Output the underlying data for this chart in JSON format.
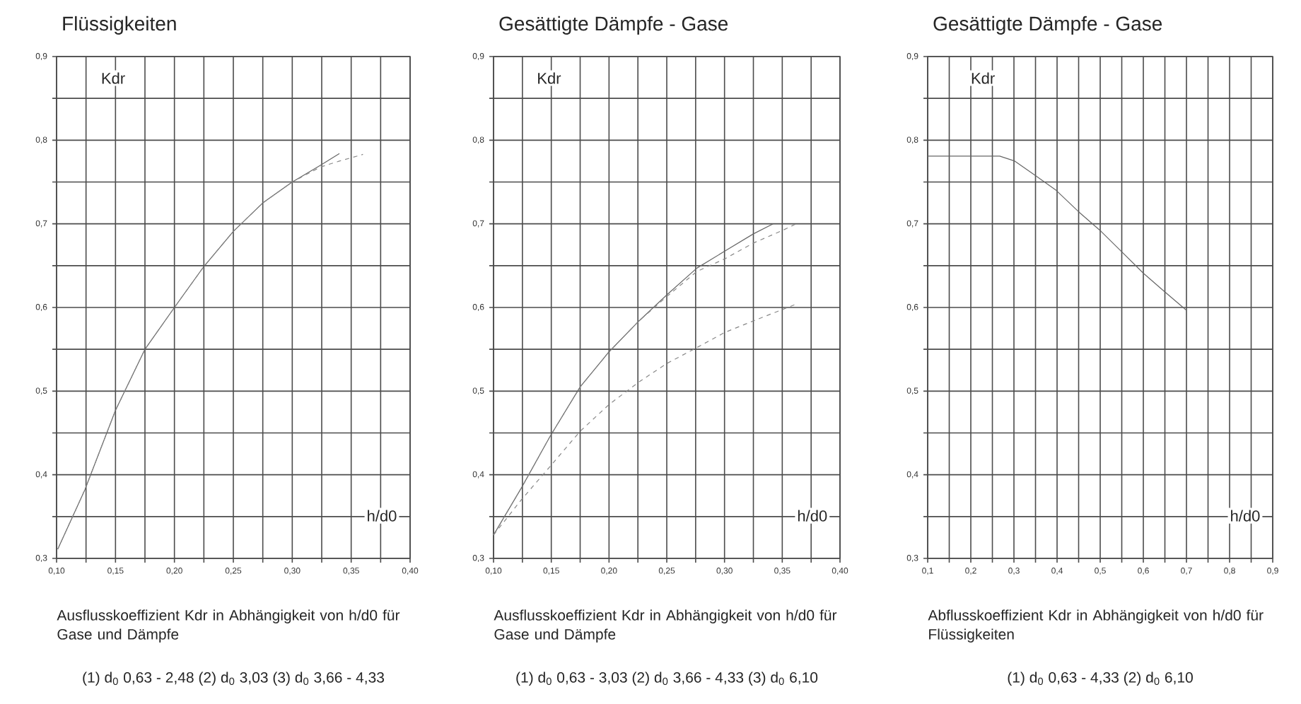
{
  "chart_data": [
    {
      "type": "line",
      "title": "Flüssigkeiten",
      "xlabel": "h/d0",
      "ylabel": "Kdr",
      "grid": true,
      "xlim": [
        0.1,
        0.4
      ],
      "ylim": [
        0.3,
        0.9
      ],
      "xticks": [
        {
          "value": 0.1,
          "label": "0,10"
        },
        {
          "value": 0.125,
          "label": null
        },
        {
          "value": 0.15,
          "label": "0,15"
        },
        {
          "value": 0.175,
          "label": null
        },
        {
          "value": 0.2,
          "label": "0,20"
        },
        {
          "value": 0.225,
          "label": null
        },
        {
          "value": 0.25,
          "label": "0,25"
        },
        {
          "value": 0.275,
          "label": null
        },
        {
          "value": 0.3,
          "label": "0,30"
        },
        {
          "value": 0.325,
          "label": null
        },
        {
          "value": 0.35,
          "label": "0,35"
        },
        {
          "value": 0.375,
          "label": null
        },
        {
          "value": 0.4,
          "label": "0,40"
        }
      ],
      "yticks": [
        {
          "value": 0.3,
          "label": "0,3"
        },
        {
          "value": 0.35,
          "label": null
        },
        {
          "value": 0.4,
          "label": "0,4"
        },
        {
          "value": 0.45,
          "label": null
        },
        {
          "value": 0.5,
          "label": "0,5"
        },
        {
          "value": 0.55,
          "label": null
        },
        {
          "value": 0.6,
          "label": "0,6"
        },
        {
          "value": 0.65,
          "label": null
        },
        {
          "value": 0.7,
          "label": "0,7"
        },
        {
          "value": 0.75,
          "label": null
        },
        {
          "value": 0.8,
          "label": "0,8"
        },
        {
          "value": 0.85,
          "label": null
        },
        {
          "value": 0.9,
          "label": "0,9"
        }
      ],
      "series": [
        {
          "color": "#666666",
          "line_style": "solid",
          "x": [
            0.101,
            0.124,
            0.15,
            0.175,
            0.2,
            0.225,
            0.25,
            0.275,
            0.3,
            0.324,
            0.34
          ],
          "values": [
            0.311,
            0.382,
            0.477,
            0.55,
            0.6,
            0.649,
            0.691,
            0.725,
            0.75,
            0.77,
            0.784
          ]
        },
        {
          "color": "#888888",
          "line_style": "dashed",
          "x": [
            0.101,
            0.124,
            0.15,
            0.175,
            0.2,
            0.225,
            0.25,
            0.275,
            0.3,
            0.324,
            0.34,
            0.36
          ],
          "values": [
            0.311,
            0.382,
            0.477,
            0.55,
            0.6,
            0.649,
            0.691,
            0.725,
            0.75,
            0.768,
            0.775,
            0.783
          ]
        }
      ],
      "annotations": [
        "Ausflusskoeffizient Kdr in Abhängigkeit von h/d0 für Gase und Dämpfe",
        "(1) d$_{0}$ 0,63 - 2,48  (2) d$_{0}$ 3,03  (3) d$_{0}$ 3,66 - 4,33"
      ]
    },
    {
      "type": "line",
      "title": "Gesättigte Dämpfe - Gase",
      "xlabel": "h/d0",
      "ylabel": "Kdr",
      "grid": true,
      "xlim": [
        0.1,
        0.4
      ],
      "ylim": [
        0.3,
        0.9
      ],
      "xticks": [
        {
          "value": 0.1,
          "label": "0,10"
        },
        {
          "value": 0.125,
          "label": null
        },
        {
          "value": 0.15,
          "label": "0,15"
        },
        {
          "value": 0.175,
          "label": null
        },
        {
          "value": 0.2,
          "label": "0,20"
        },
        {
          "value": 0.225,
          "label": null
        },
        {
          "value": 0.25,
          "label": "0,25"
        },
        {
          "value": 0.275,
          "label": null
        },
        {
          "value": 0.3,
          "label": "0,30"
        },
        {
          "value": 0.325,
          "label": null
        },
        {
          "value": 0.35,
          "label": "0,35"
        },
        {
          "value": 0.375,
          "label": null
        },
        {
          "value": 0.4,
          "label": "0,40"
        }
      ],
      "yticks": [
        {
          "value": 0.3,
          "label": "0,3"
        },
        {
          "value": 0.35,
          "label": null
        },
        {
          "value": 0.4,
          "label": "0,4"
        },
        {
          "value": 0.45,
          "label": null
        },
        {
          "value": 0.5,
          "label": "0,5"
        },
        {
          "value": 0.55,
          "label": null
        },
        {
          "value": 0.6,
          "label": "0,6"
        },
        {
          "value": 0.65,
          "label": null
        },
        {
          "value": 0.7,
          "label": "0,7"
        },
        {
          "value": 0.75,
          "label": null
        },
        {
          "value": 0.8,
          "label": "0,8"
        },
        {
          "value": 0.85,
          "label": null
        },
        {
          "value": 0.9,
          "label": "0,9"
        }
      ],
      "series": [
        {
          "color": "#666666",
          "line_style": "solid",
          "x": [
            0.1,
            0.124,
            0.149,
            0.175,
            0.2,
            0.226,
            0.25,
            0.276,
            0.301,
            0.325,
            0.342
          ],
          "values": [
            0.328,
            0.384,
            0.446,
            0.505,
            0.547,
            0.584,
            0.615,
            0.647,
            0.668,
            0.688,
            0.7
          ]
        },
        {
          "color": "#888888",
          "line_style": "dashed",
          "x": [
            0.1,
            0.124,
            0.149,
            0.175,
            0.2,
            0.226,
            0.25,
            0.276,
            0.3,
            0.325,
            0.35,
            0.362
          ],
          "values": [
            0.328,
            0.384,
            0.446,
            0.505,
            0.547,
            0.584,
            0.613,
            0.643,
            0.658,
            0.677,
            0.692,
            0.7
          ]
        },
        {
          "color": "#888888",
          "line_style": "dashed",
          "x": [
            0.1,
            0.124,
            0.149,
            0.175,
            0.2,
            0.226,
            0.25,
            0.276,
            0.3,
            0.325,
            0.362
          ],
          "values": [
            0.328,
            0.37,
            0.41,
            0.452,
            0.484,
            0.511,
            0.533,
            0.552,
            0.57,
            0.584,
            0.604
          ]
        }
      ],
      "annotations": [
        "Ausflusskoeffizient Kdr in Abhängigkeit von h/d0 für Gase und Dämpfe",
        "(1) d$_{0}$ 0,63 - 3,03 (2) d$_{0}$ 3,66 - 4,33  (3) d$_{0}$ 6,10"
      ]
    },
    {
      "type": "line",
      "title": "Gesättigte Dämpfe - Gase",
      "xlabel": "h/d0",
      "ylabel": "Kdr",
      "grid": true,
      "xlim": [
        0.1,
        0.9
      ],
      "ylim": [
        0.3,
        0.9
      ],
      "xticks": [
        {
          "value": 0.1,
          "label": "0,1"
        },
        {
          "value": 0.15,
          "label": null
        },
        {
          "value": 0.2,
          "label": "0,2"
        },
        {
          "value": 0.25,
          "label": null
        },
        {
          "value": 0.3,
          "label": "0,3"
        },
        {
          "value": 0.35,
          "label": null
        },
        {
          "value": 0.4,
          "label": "0,4"
        },
        {
          "value": 0.45,
          "label": null
        },
        {
          "value": 0.5,
          "label": "0,5"
        },
        {
          "value": 0.55,
          "label": null
        },
        {
          "value": 0.6,
          "label": "0,6"
        },
        {
          "value": 0.65,
          "label": null
        },
        {
          "value": 0.7,
          "label": "0,7"
        },
        {
          "value": 0.75,
          "label": null
        },
        {
          "value": 0.8,
          "label": "0,8"
        },
        {
          "value": 0.85,
          "label": null
        },
        {
          "value": 0.9,
          "label": "0,9"
        }
      ],
      "yticks": [
        {
          "value": 0.3,
          "label": "0,3"
        },
        {
          "value": 0.35,
          "label": null
        },
        {
          "value": 0.4,
          "label": "0,4"
        },
        {
          "value": 0.45,
          "label": null
        },
        {
          "value": 0.5,
          "label": "0,5"
        },
        {
          "value": 0.55,
          "label": null
        },
        {
          "value": 0.6,
          "label": "0,6"
        },
        {
          "value": 0.65,
          "label": null
        },
        {
          "value": 0.7,
          "label": "0,7"
        },
        {
          "value": 0.75,
          "label": null
        },
        {
          "value": 0.8,
          "label": "0,8"
        },
        {
          "value": 0.85,
          "label": null
        },
        {
          "value": 0.9,
          "label": "0,9"
        }
      ],
      "series": [
        {
          "color": "#666666",
          "line_style": "solid",
          "x": [
            0.1,
            0.2,
            0.267,
            0.302,
            0.349,
            0.398,
            0.453,
            0.502,
            0.551,
            0.6,
            0.649,
            0.699
          ],
          "values": [
            0.781,
            0.781,
            0.781,
            0.775,
            0.758,
            0.74,
            0.713,
            0.691,
            0.666,
            0.641,
            0.619,
            0.597
          ]
        }
      ],
      "annotations": [
        "Abflusskoeffizient Kdr in Abhängigkeit von h/d0 für Flüssigkeiten",
        "(1) d$_{0}$ 0,63 - 4,33  (2) d$_{0}$ 6,10"
      ]
    }
  ]
}
